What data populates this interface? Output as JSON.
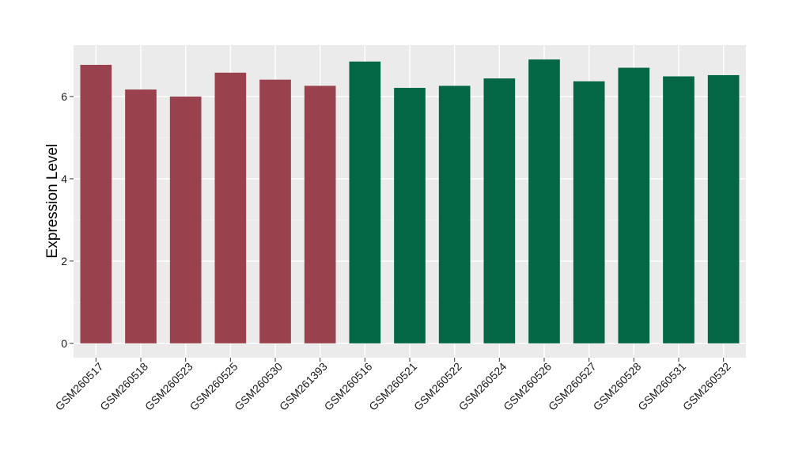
{
  "chart_data": {
    "type": "bar",
    "title": "",
    "xlabel": "",
    "ylabel": "Expression Level",
    "ylim": [
      -0.35,
      7.25
    ],
    "yticks": [
      0,
      2,
      4,
      6
    ],
    "grid": true,
    "legend": "none",
    "colors": {
      "panel_background": "#EBEBEB",
      "grid_major": "#FFFFFF",
      "grid_minor": "#F5F5F5",
      "group_a": "#9A414E",
      "group_b": "#036644",
      "tick": "#333333"
    },
    "categories": [
      "GSM260517",
      "GSM260518",
      "GSM260523",
      "GSM260525",
      "GSM260530",
      "GSM261393",
      "GSM260516",
      "GSM260521",
      "GSM260522",
      "GSM260524",
      "GSM260526",
      "GSM260527",
      "GSM260528",
      "GSM260531",
      "GSM260532"
    ],
    "values": [
      6.77,
      6.17,
      6.0,
      6.58,
      6.41,
      6.26,
      6.85,
      6.21,
      6.26,
      6.44,
      6.9,
      6.37,
      6.7,
      6.49,
      6.52
    ],
    "bar_groups": [
      "a",
      "a",
      "a",
      "a",
      "a",
      "a",
      "b",
      "b",
      "b",
      "b",
      "b",
      "b",
      "b",
      "b",
      "b"
    ]
  }
}
